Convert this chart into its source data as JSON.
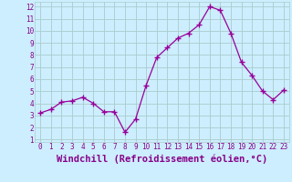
{
  "x": [
    0,
    1,
    2,
    3,
    4,
    5,
    6,
    7,
    8,
    9,
    10,
    11,
    12,
    13,
    14,
    15,
    16,
    17,
    18,
    19,
    20,
    21,
    22,
    23
  ],
  "y": [
    3.2,
    3.5,
    4.1,
    4.2,
    4.5,
    4.0,
    3.3,
    3.3,
    1.6,
    2.7,
    5.5,
    7.8,
    8.6,
    9.4,
    9.8,
    10.5,
    12.0,
    11.7,
    9.8,
    7.4,
    6.3,
    5.0,
    4.3,
    5.1
  ],
  "line_color": "#990099",
  "marker": "+",
  "marker_size": 4,
  "bg_color": "#cceeff",
  "grid_color": "#aacccc",
  "xlabel": "Windchill (Refroidissement éolien,°C)",
  "xlabel_color": "#880088",
  "ylabel_ticks": [
    1,
    2,
    3,
    4,
    5,
    6,
    7,
    8,
    9,
    10,
    11,
    12
  ],
  "xlim": [
    -0.5,
    23.5
  ],
  "ylim": [
    0.8,
    12.4
  ],
  "xtick_labels": [
    "0",
    "1",
    "2",
    "3",
    "4",
    "5",
    "6",
    "7",
    "8",
    "9",
    "10",
    "11",
    "12",
    "13",
    "14",
    "15",
    "16",
    "17",
    "18",
    "19",
    "20",
    "21",
    "22",
    "23"
  ],
  "font_color": "#880088",
  "tick_fontsize": 5.5,
  "label_fontsize": 7.5
}
